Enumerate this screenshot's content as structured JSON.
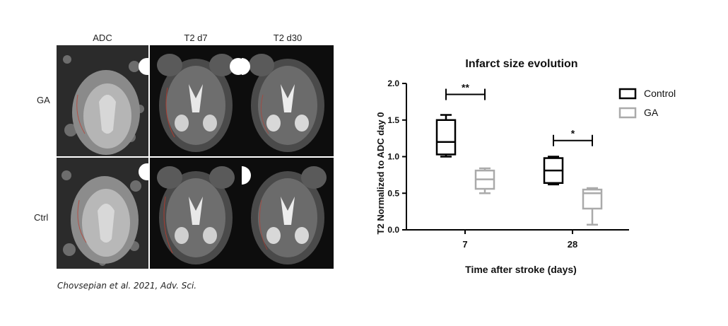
{
  "figure": {
    "columns": [
      "ADC",
      "T2 d7",
      "T2 d30"
    ],
    "rows": [
      "GA",
      "Ctrl"
    ],
    "citation": "Chovsepian et al. 2021, Adv. Sci."
  },
  "chart_data": {
    "type": "boxplot",
    "title": "Infarct size evolution",
    "xlabel": "Time after stroke (days)",
    "ylabel": "T2 Normalized to ADC day 0",
    "categories": [
      "7",
      "28"
    ],
    "ylim": [
      0.0,
      2.0
    ],
    "yticks": [
      "0.0",
      "0.5",
      "1.0",
      "1.5",
      "2.0"
    ],
    "legend_position": "top-right",
    "series": [
      {
        "name": "Control",
        "color": "#000000",
        "boxes": [
          {
            "min": 1.0,
            "q1": 1.03,
            "median": 1.2,
            "q3": 1.5,
            "max": 1.57
          },
          {
            "min": 0.62,
            "q1": 0.64,
            "median": 0.81,
            "q3": 0.98,
            "max": 1.0
          }
        ]
      },
      {
        "name": "GA",
        "color": "#aaaaaa",
        "boxes": [
          {
            "min": 0.5,
            "q1": 0.56,
            "median": 0.69,
            "q3": 0.81,
            "max": 0.84
          },
          {
            "min": 0.07,
            "q1": 0.29,
            "median": 0.5,
            "q3": 0.55,
            "max": 0.57
          }
        ]
      }
    ],
    "annotations": [
      {
        "category": "7",
        "label": "**",
        "y": 1.85
      },
      {
        "category": "28",
        "label": "*",
        "y": 1.22
      }
    ]
  }
}
